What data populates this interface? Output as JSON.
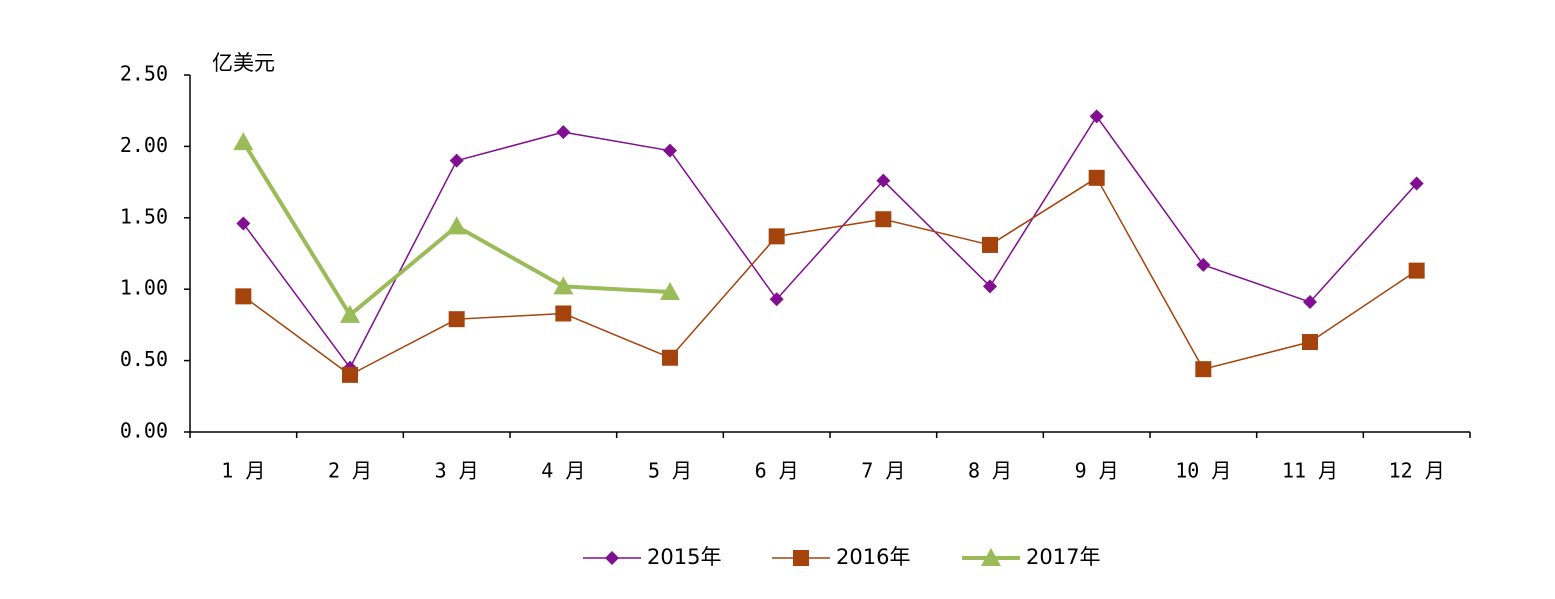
{
  "chart_data": {
    "type": "line",
    "y_label": "亿美元",
    "categories": [
      "1 月",
      "2 月",
      "3 月",
      "4 月",
      "5 月",
      "6 月",
      "7 月",
      "8 月",
      "9 月",
      "10 月",
      "11 月",
      "12 月"
    ],
    "series": [
      {
        "name": "2015年",
        "color": "#800f91",
        "marker": "diamond",
        "line_width": 1.5,
        "values": [
          1.46,
          0.45,
          1.9,
          2.1,
          1.97,
          0.93,
          1.76,
          1.02,
          2.21,
          1.17,
          0.91,
          1.74
        ]
      },
      {
        "name": "2016年",
        "color": "#a5430d",
        "marker": "square",
        "line_width": 1.5,
        "values": [
          0.95,
          0.4,
          0.79,
          0.83,
          0.52,
          1.37,
          1.49,
          1.31,
          1.78,
          0.44,
          0.63,
          1.13
        ]
      },
      {
        "name": "2017年",
        "color": "#9bbb59",
        "marker": "triangle",
        "line_width": 4,
        "values": [
          2.03,
          0.82,
          1.44,
          1.02,
          0.98,
          null,
          null,
          null,
          null,
          null,
          null,
          null
        ]
      }
    ],
    "ylim": [
      0,
      2.5
    ],
    "yticks": [
      {
        "value": 0,
        "label": "0.00"
      },
      {
        "value": 0.5,
        "label": "0.50"
      },
      {
        "value": 1,
        "label": "1.00"
      },
      {
        "value": 1.5,
        "label": "1.50"
      },
      {
        "value": 2,
        "label": "2.00"
      },
      {
        "value": 2.5,
        "label": "2.50"
      }
    ],
    "legend": "bottom"
  }
}
